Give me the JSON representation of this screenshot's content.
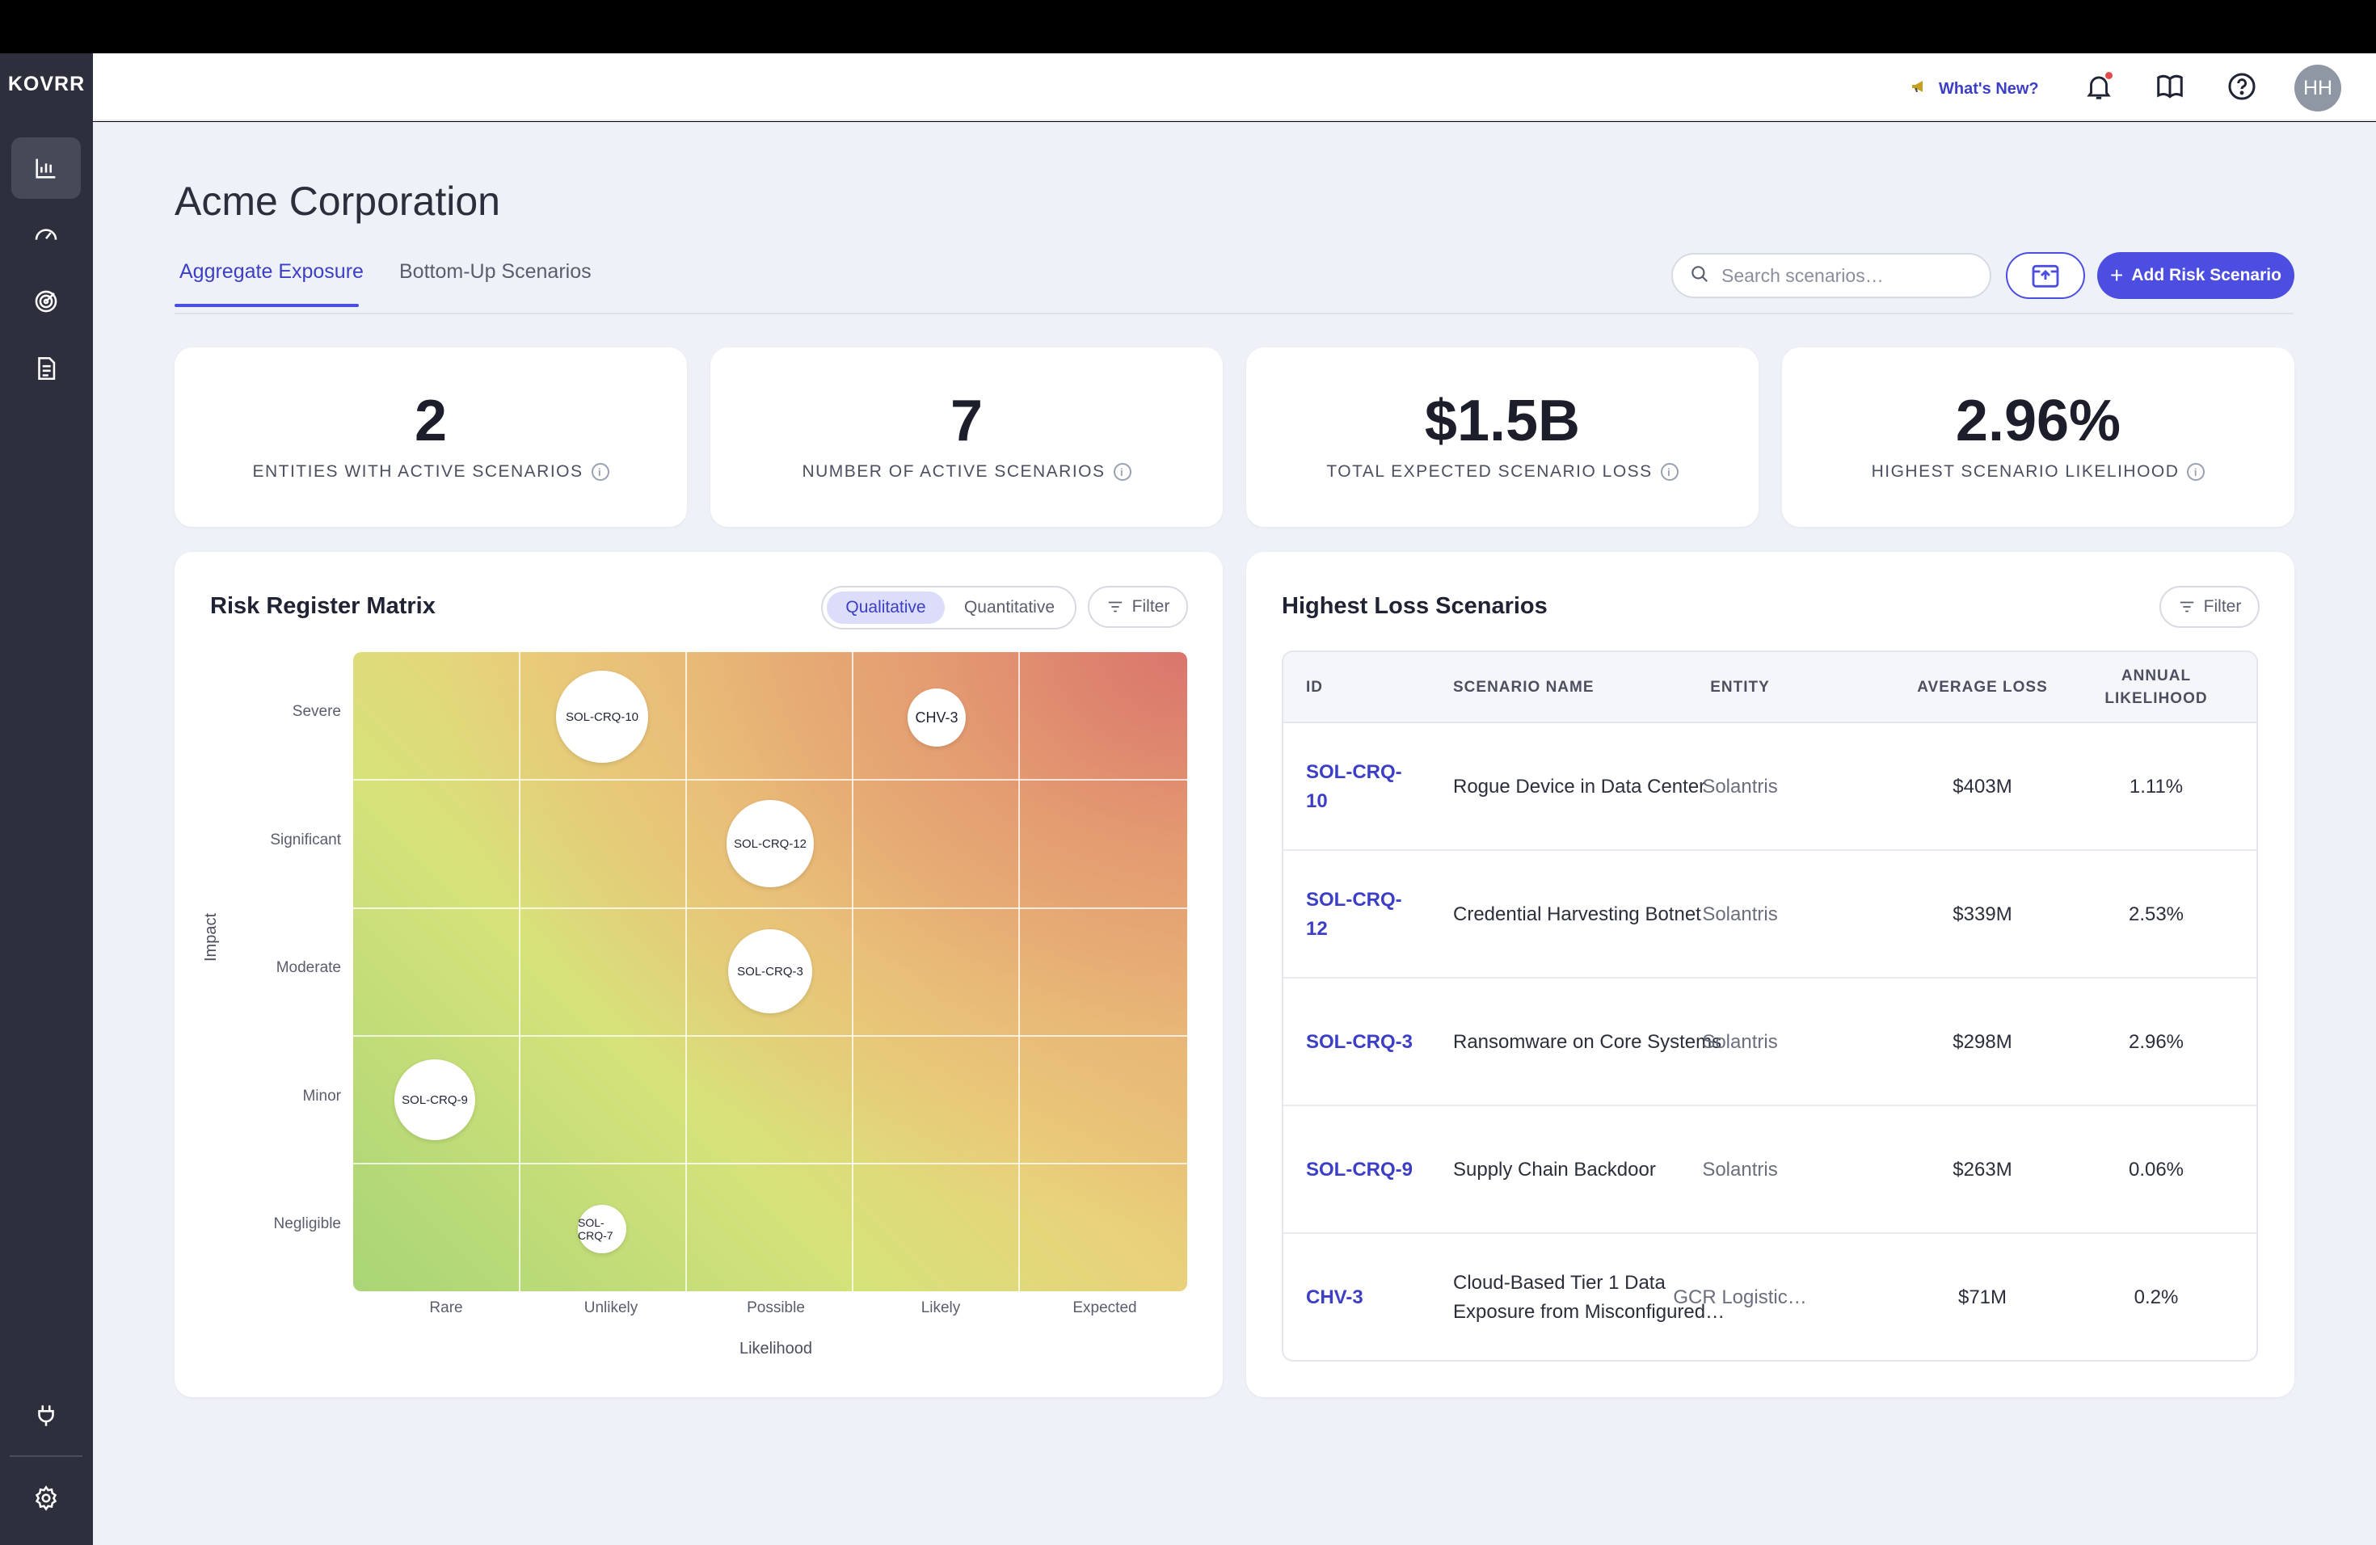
{
  "app": {
    "logo": "KOVRR"
  },
  "topbar": {
    "whats_new": "What's New?",
    "avatar_initials": "HH"
  },
  "page": {
    "title": "Acme Corporation",
    "tabs": [
      {
        "label": "Aggregate Exposure",
        "active": true
      },
      {
        "label": "Bottom-Up Scenarios",
        "active": false
      }
    ],
    "search_placeholder": "Search scenarios…",
    "add_button": "Add Risk Scenario"
  },
  "kpis": [
    {
      "value": "2",
      "label": "ENTITIES WITH ACTIVE SCENARIOS"
    },
    {
      "value": "7",
      "label": "NUMBER OF ACTIVE SCENARIOS"
    },
    {
      "value": "$1.5B",
      "label": "TOTAL EXPECTED SCENARIO LOSS"
    },
    {
      "value": "2.96%",
      "label": "HIGHEST SCENARIO LIKELIHOOD"
    }
  ],
  "matrix": {
    "title": "Risk Register Matrix",
    "toggle": {
      "on": "Qualitative",
      "off": "Quantitative"
    },
    "filter": "Filter",
    "y_title": "Impact",
    "x_title": "Likelihood",
    "y_labels": [
      "Severe",
      "Significant",
      "Moderate",
      "Minor",
      "Negligible"
    ],
    "x_labels": [
      "Rare",
      "Unlikely",
      "Possible",
      "Likely",
      "Expected"
    ],
    "bubbles": [
      {
        "id": "SOL-CRQ-10",
        "likelihood": "Unlikely",
        "impact": "Severe"
      },
      {
        "id": "CHV-3",
        "likelihood": "Likely",
        "impact": "Severe"
      },
      {
        "id": "SOL-CRQ-12",
        "likelihood": "Possible",
        "impact": "Significant"
      },
      {
        "id": "SOL-CRQ-3",
        "likelihood": "Possible",
        "impact": "Moderate"
      },
      {
        "id": "SOL-CRQ-9",
        "likelihood": "Rare",
        "impact": "Minor"
      },
      {
        "id": "SOL-CRQ-7",
        "likelihood": "Unlikely",
        "impact": "Negligible"
      }
    ]
  },
  "loss": {
    "title": "Highest Loss Scenarios",
    "filter": "Filter",
    "columns": {
      "id": "ID",
      "name": "SCENARIO NAME",
      "entity": "ENTITY",
      "avg": "AVERAGE LOSS",
      "likelihood_1": "ANNUAL",
      "likelihood_2": "LIKELIHOOD"
    },
    "rows": [
      {
        "id": "SOL-CRQ-10",
        "id_1": "SOL-CRQ-",
        "id_2": "10",
        "name_1": "Rogue Device in Data Center",
        "name_2": "",
        "entity": "Solantris",
        "avg": "$403M",
        "likelihood": "1.11%"
      },
      {
        "id": "SOL-CRQ-12",
        "id_1": "SOL-CRQ-",
        "id_2": "12",
        "name_1": "Credential Harvesting Botnet",
        "name_2": "",
        "entity": "Solantris",
        "avg": "$339M",
        "likelihood": "2.53%"
      },
      {
        "id": "SOL-CRQ-3",
        "id_1": "SOL-CRQ-3",
        "id_2": "",
        "name_1": "Ransomware on Core Systems",
        "name_2": "",
        "entity": "Solantris",
        "avg": "$298M",
        "likelihood": "2.96%"
      },
      {
        "id": "SOL-CRQ-9",
        "id_1": "SOL-CRQ-9",
        "id_2": "",
        "name_1": "Supply Chain Backdoor",
        "name_2": "",
        "entity": "Solantris",
        "avg": "$263M",
        "likelihood": "0.06%"
      },
      {
        "id": "CHV-3",
        "id_1": "CHV-3",
        "id_2": "",
        "name_1": "Cloud-Based Tier 1 Data",
        "name_2": "Exposure from Misconfigured…",
        "entity": "GCR Logistic…",
        "avg": "$71M",
        "likelihood": "0.2%"
      }
    ]
  },
  "colors": {
    "accent": "#4b4ee0",
    "sidebar": "#2d2f3c",
    "background": "#eef1f7"
  }
}
